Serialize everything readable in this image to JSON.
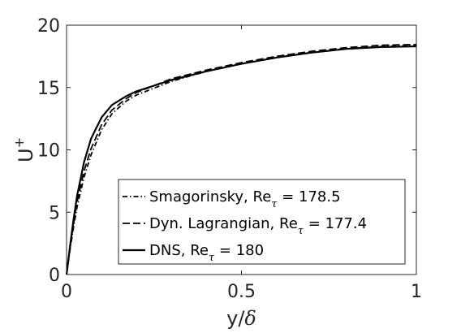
{
  "chart_data": {
    "type": "line",
    "xlabel_main": "y/",
    "xlabel_symbol": "δ",
    "ylabel_main": "U",
    "ylabel_sup": "+",
    "xlim": [
      0,
      1
    ],
    "ylim": [
      0,
      20
    ],
    "xticks": [
      0,
      0.5,
      1
    ],
    "xtick_labels": [
      "0",
      "0.5",
      "1"
    ],
    "yticks": [
      0,
      5,
      10,
      15,
      20
    ],
    "ytick_labels": [
      "0",
      "5",
      "10",
      "15",
      "20"
    ],
    "grid": false,
    "legend_position": "bottom-right",
    "series": [
      {
        "legend_label": "Smagorinsky, Re",
        "legend_sub": "τ",
        "legend_tail": " = 178.5",
        "style": "dashdot",
        "color": "#000000",
        "x": [
          0,
          0.01,
          0.02,
          0.03,
          0.05,
          0.07,
          0.1,
          0.13,
          0.17,
          0.2,
          0.3,
          0.4,
          0.5,
          0.6,
          0.7,
          0.8,
          0.9,
          1.0
        ],
        "y": [
          0,
          2.0,
          3.8,
          5.4,
          7.8,
          9.6,
          11.6,
          12.9,
          13.9,
          14.4,
          15.5,
          16.3,
          16.9,
          17.4,
          17.8,
          18.1,
          18.3,
          18.35
        ]
      },
      {
        "legend_label": "Dyn. Lagrangian, Re",
        "legend_sub": "τ",
        "legend_tail": " = 177.4",
        "style": "dashed",
        "color": "#000000",
        "x": [
          0,
          0.01,
          0.02,
          0.03,
          0.05,
          0.07,
          0.1,
          0.13,
          0.17,
          0.2,
          0.3,
          0.4,
          0.5,
          0.6,
          0.7,
          0.8,
          0.9,
          1.0
        ],
        "y": [
          0,
          2.1,
          4.0,
          5.8,
          8.3,
          10.1,
          12.0,
          13.2,
          14.1,
          14.6,
          15.7,
          16.4,
          17.0,
          17.5,
          17.9,
          18.2,
          18.4,
          18.45
        ]
      },
      {
        "legend_label": "DNS, Re",
        "legend_sub": "τ",
        "legend_tail": " = 180",
        "style": "solid",
        "color": "#000000",
        "x": [
          0,
          0.01,
          0.02,
          0.03,
          0.05,
          0.07,
          0.1,
          0.13,
          0.17,
          0.2,
          0.3,
          0.4,
          0.5,
          0.6,
          0.7,
          0.8,
          0.9,
          1.0
        ],
        "y": [
          0,
          2.3,
          4.4,
          6.3,
          9.0,
          10.9,
          12.6,
          13.6,
          14.3,
          14.7,
          15.6,
          16.3,
          16.9,
          17.4,
          17.8,
          18.1,
          18.25,
          18.3
        ]
      }
    ]
  }
}
